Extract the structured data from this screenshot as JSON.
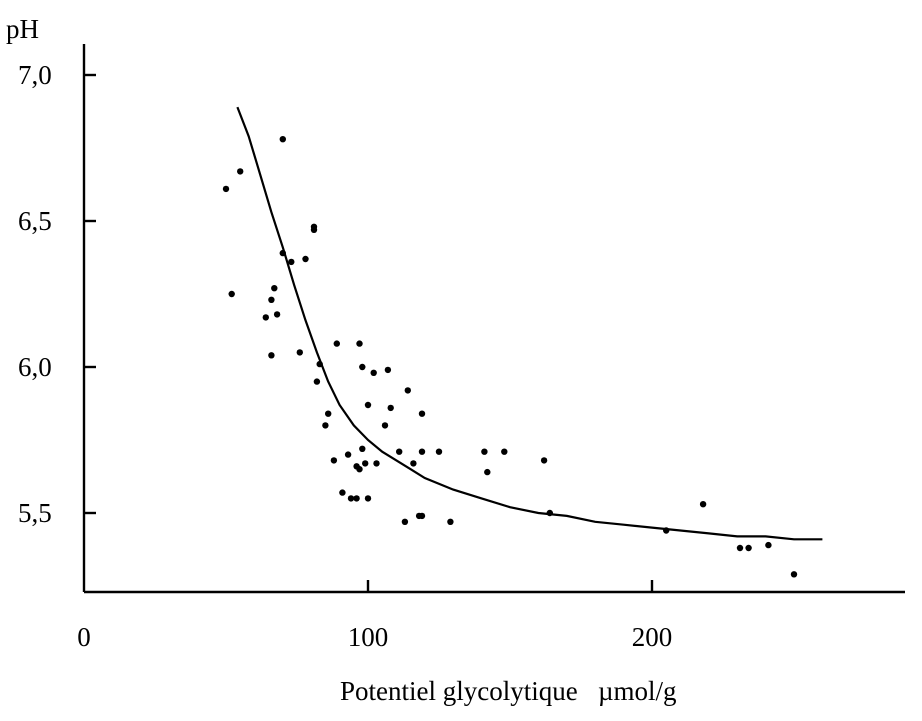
{
  "chart_data": {
    "type": "scatter",
    "title": "",
    "xlabel": "Potentiel glycolytique   µmol/g",
    "ylabel": "pH",
    "xlim": [
      0,
      265
    ],
    "ylim": [
      5.2,
      7.1
    ],
    "x_ticks": [
      0,
      100,
      200
    ],
    "x_tick_labels": [
      "0",
      "100",
      "200"
    ],
    "y_ticks": [
      5.5,
      6.0,
      6.5,
      7.0
    ],
    "y_tick_labels": [
      "5,5",
      "6,0",
      "6,5",
      "7,0"
    ],
    "grid": false,
    "legend": "none",
    "series": [
      {
        "type": "scatter",
        "points": [
          [
            50,
            6.61
          ],
          [
            52,
            6.25
          ],
          [
            55,
            6.67
          ],
          [
            70,
            6.78
          ],
          [
            81,
            6.47
          ],
          [
            81,
            6.48
          ],
          [
            70,
            6.39
          ],
          [
            73,
            6.36
          ],
          [
            78,
            6.37
          ],
          [
            67,
            6.27
          ],
          [
            66,
            6.23
          ],
          [
            68,
            6.18
          ],
          [
            64,
            6.17
          ],
          [
            66,
            6.04
          ],
          [
            76,
            6.05
          ],
          [
            83,
            6.01
          ],
          [
            82,
            5.95
          ],
          [
            89,
            6.08
          ],
          [
            97,
            6.08
          ],
          [
            98,
            6.0
          ],
          [
            102,
            5.98
          ],
          [
            107,
            5.99
          ],
          [
            100,
            5.87
          ],
          [
            108,
            5.86
          ],
          [
            114,
            5.92
          ],
          [
            119,
            5.84
          ],
          [
            86,
            5.84
          ],
          [
            85,
            5.8
          ],
          [
            106,
            5.8
          ],
          [
            88,
            5.68
          ],
          [
            91,
            5.57
          ],
          [
            94,
            5.55
          ],
          [
            96,
            5.55
          ],
          [
            100,
            5.55
          ],
          [
            93,
            5.7
          ],
          [
            96,
            5.66
          ],
          [
            97,
            5.65
          ],
          [
            98,
            5.72
          ],
          [
            99,
            5.67
          ],
          [
            103,
            5.67
          ],
          [
            111,
            5.71
          ],
          [
            116,
            5.67
          ],
          [
            119,
            5.71
          ],
          [
            125,
            5.71
          ],
          [
            141,
            5.71
          ],
          [
            148,
            5.71
          ],
          [
            142,
            5.64
          ],
          [
            162,
            5.68
          ],
          [
            113,
            5.47
          ],
          [
            118,
            5.49
          ],
          [
            119,
            5.49
          ],
          [
            129,
            5.47
          ],
          [
            164,
            5.5
          ],
          [
            205,
            5.44
          ],
          [
            218,
            5.53
          ],
          [
            231,
            5.38
          ],
          [
            234,
            5.38
          ],
          [
            241,
            5.39
          ],
          [
            250,
            5.29
          ]
        ]
      },
      {
        "type": "line",
        "points": [
          [
            54,
            6.89
          ],
          [
            58,
            6.79
          ],
          [
            62,
            6.66
          ],
          [
            66,
            6.53
          ],
          [
            70,
            6.41
          ],
          [
            74,
            6.28
          ],
          [
            78,
            6.16
          ],
          [
            82,
            6.05
          ],
          [
            86,
            5.95
          ],
          [
            90,
            5.87
          ],
          [
            95,
            5.8
          ],
          [
            100,
            5.75
          ],
          [
            105,
            5.71
          ],
          [
            110,
            5.68
          ],
          [
            115,
            5.65
          ],
          [
            120,
            5.62
          ],
          [
            130,
            5.58
          ],
          [
            140,
            5.55
          ],
          [
            150,
            5.52
          ],
          [
            160,
            5.5
          ],
          [
            170,
            5.49
          ],
          [
            180,
            5.47
          ],
          [
            190,
            5.46
          ],
          [
            200,
            5.45
          ],
          [
            210,
            5.44
          ],
          [
            220,
            5.43
          ],
          [
            230,
            5.42
          ],
          [
            240,
            5.42
          ],
          [
            250,
            5.41
          ],
          [
            260,
            5.41
          ]
        ]
      }
    ]
  }
}
